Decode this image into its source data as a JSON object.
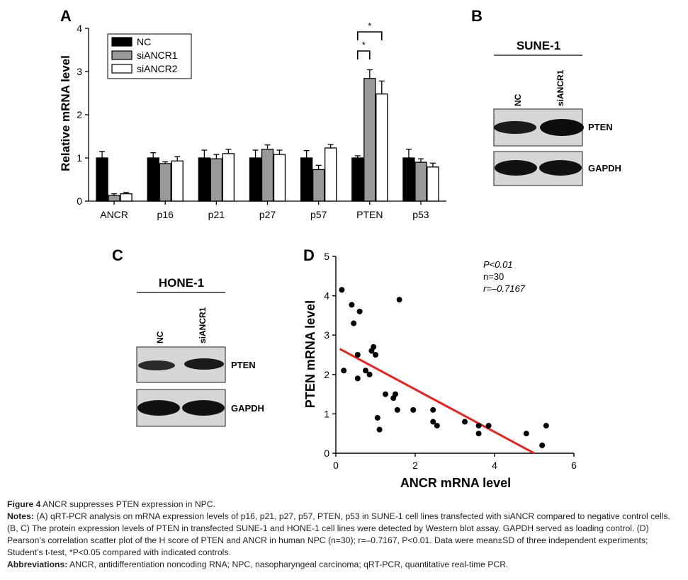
{
  "panels": {
    "a": "A",
    "b": "B",
    "c": "C",
    "d": "D"
  },
  "chart_data": [
    {
      "type": "bar",
      "panel": "A",
      "ylabel": "Relative mRNA level",
      "ylim": [
        0,
        4
      ],
      "yticks": [
        "0",
        "1",
        "2",
        "3",
        "4"
      ],
      "categories": [
        "ANCR",
        "p16",
        "p21",
        "p27",
        "p57",
        "PTEN",
        "p53"
      ],
      "legend_position": "top-left",
      "series": [
        {
          "name": "NC",
          "color": "#000000",
          "values": [
            1.0,
            1.0,
            1.0,
            1.0,
            1.0,
            1.0,
            1.0
          ],
          "errors": [
            0.15,
            0.12,
            0.18,
            0.18,
            0.17,
            0.05,
            0.2
          ]
        },
        {
          "name": "siANCR1",
          "color": "#999999",
          "values": [
            0.13,
            0.87,
            0.98,
            1.2,
            0.73,
            2.84,
            0.9
          ],
          "errors": [
            0.04,
            0.04,
            0.1,
            0.1,
            0.1,
            0.2,
            0.08
          ]
        },
        {
          "name": "siANCR2",
          "color": "#ffffff",
          "values": [
            0.17,
            0.93,
            1.1,
            1.08,
            1.23,
            2.48,
            0.79
          ],
          "errors": [
            0.03,
            0.1,
            0.1,
            0.1,
            0.08,
            0.3,
            0.09
          ]
        }
      ],
      "significance": [
        {
          "label": "*",
          "from": "NC",
          "to": "siANCR1",
          "category": "PTEN"
        },
        {
          "label": "*",
          "from": "NC",
          "to": "siANCR2",
          "category": "PTEN"
        }
      ]
    },
    {
      "type": "scatter",
      "panel": "D",
      "xlabel": "ANCR mRNA level",
      "ylabel": "PTEN mRNA level",
      "xlim": [
        0,
        6
      ],
      "ylim": [
        0,
        5
      ],
      "xticks": [
        "0",
        "2",
        "4",
        "6"
      ],
      "yticks": [
        "0",
        "1",
        "2",
        "3",
        "4",
        "5"
      ],
      "annotation": {
        "p": "P<0.01",
        "n": "n=30",
        "r": "r=–0.7167"
      },
      "fit_line": {
        "color": "#e52421",
        "x": [
          0.1,
          5.0
        ],
        "y": [
          2.65,
          0.0
        ]
      },
      "points": [
        {
          "x": 0.15,
          "y": 4.15
        },
        {
          "x": 0.4,
          "y": 3.77
        },
        {
          "x": 0.45,
          "y": 3.3
        },
        {
          "x": 0.6,
          "y": 3.6
        },
        {
          "x": 1.6,
          "y": 3.9
        },
        {
          "x": 0.2,
          "y": 2.1
        },
        {
          "x": 0.55,
          "y": 2.5
        },
        {
          "x": 0.55,
          "y": 1.9
        },
        {
          "x": 0.75,
          "y": 2.1
        },
        {
          "x": 0.85,
          "y": 2.0
        },
        {
          "x": 0.9,
          "y": 2.6
        },
        {
          "x": 0.95,
          "y": 2.7
        },
        {
          "x": 1.0,
          "y": 2.5
        },
        {
          "x": 1.25,
          "y": 1.5
        },
        {
          "x": 1.45,
          "y": 1.4
        },
        {
          "x": 1.5,
          "y": 1.5
        },
        {
          "x": 1.55,
          "y": 1.1
        },
        {
          "x": 1.95,
          "y": 1.1
        },
        {
          "x": 2.45,
          "y": 1.1
        },
        {
          "x": 2.45,
          "y": 0.8
        },
        {
          "x": 2.55,
          "y": 0.7
        },
        {
          "x": 3.25,
          "y": 0.8
        },
        {
          "x": 3.6,
          "y": 0.7
        },
        {
          "x": 3.6,
          "y": 0.5
        },
        {
          "x": 3.85,
          "y": 0.7
        },
        {
          "x": 4.8,
          "y": 0.5
        },
        {
          "x": 5.2,
          "y": 0.2
        },
        {
          "x": 5.3,
          "y": 0.7
        },
        {
          "x": 1.05,
          "y": 0.9
        },
        {
          "x": 1.1,
          "y": 0.6
        }
      ]
    }
  ],
  "blots": {
    "b": {
      "cell_line": "SUNE-1",
      "lanes": [
        "NC",
        "siANCR1"
      ],
      "bands": [
        "PTEN",
        "GAPDH"
      ]
    },
    "c": {
      "cell_line": "HONE-1",
      "lanes": [
        "NC",
        "siANCR1"
      ],
      "bands": [
        "PTEN",
        "GAPDH"
      ]
    }
  },
  "caption": {
    "figure_label": "Figure 4",
    "figure_title": "ANCR suppresses PTEN expression in NPC.",
    "notes_label": "Notes:",
    "notes_text": "(A) qRT-PCR analysis on mRNA expression levels of p16, p21, p27, p57, PTEN, p53 in SUNE-1 cell lines transfected with siANCR compared to negative control cells. (B, C) The protein expression levels of PTEN in transfected SUNE-1 and HONE-1 cell lines were detected by Western blot assay. GAPDH served as loading control. (D) Pearson’s correlation scatter plot of the H score of PTEN and ANCR in human NPC (n=30); r=–0.7167, P<0.01. Data were mean±SD of three independent experiments; Student’s t-test, *P<0.05 compared with indicated controls.",
    "abbr_label": "Abbreviations:",
    "abbr_text": "ANCR, antidifferentiation noncoding RNA; NPC, nasopharyngeal carcinoma; qRT-PCR, quantitative real-time PCR."
  }
}
